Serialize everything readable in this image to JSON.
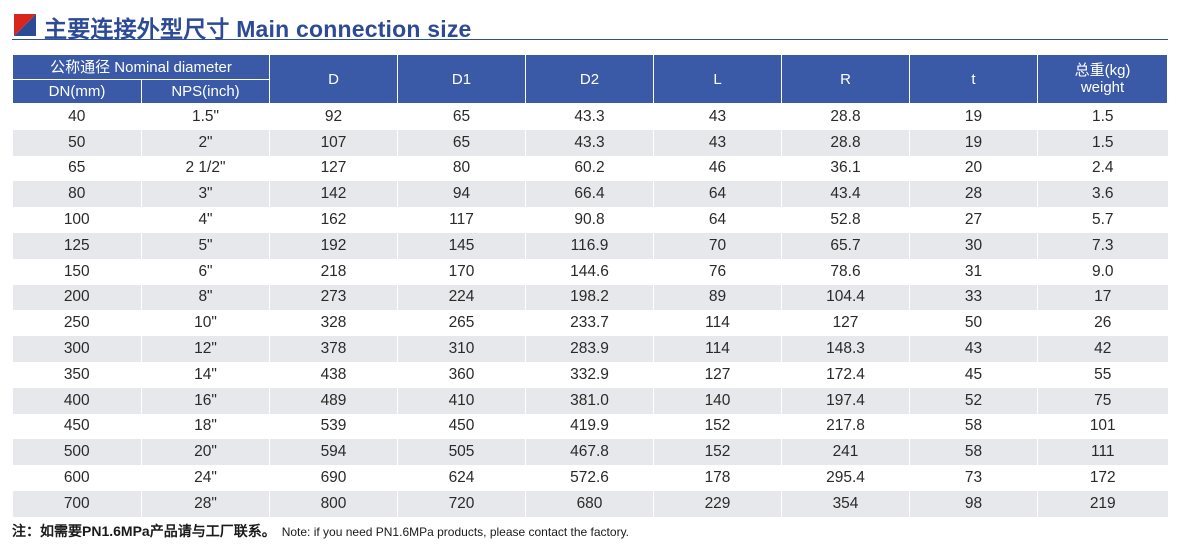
{
  "title": "主要连接外型尺寸 Main connection size",
  "columns": {
    "nominal_group": "公称通径 Nominal diameter",
    "dn": "DN(mm)",
    "nps": "NPS(inch)",
    "d": "D",
    "d1": "D1",
    "d2": "D2",
    "l": "L",
    "r": "R",
    "t": "t",
    "weight_cn": "总重(kg)",
    "weight_en": "weight"
  },
  "rows": [
    [
      "40",
      "1.5\"",
      "92",
      "65",
      "43.3",
      "43",
      "28.8",
      "19",
      "1.5"
    ],
    [
      "50",
      "2\"",
      "107",
      "65",
      "43.3",
      "43",
      "28.8",
      "19",
      "1.5"
    ],
    [
      "65",
      "2 1/2\"",
      "127",
      "80",
      "60.2",
      "46",
      "36.1",
      "20",
      "2.4"
    ],
    [
      "80",
      "3\"",
      "142",
      "94",
      "66.4",
      "64",
      "43.4",
      "28",
      "3.6"
    ],
    [
      "100",
      "4\"",
      "162",
      "117",
      "90.8",
      "64",
      "52.8",
      "27",
      "5.7"
    ],
    [
      "125",
      "5\"",
      "192",
      "145",
      "116.9",
      "70",
      "65.7",
      "30",
      "7.3"
    ],
    [
      "150",
      "6\"",
      "218",
      "170",
      "144.6",
      "76",
      "78.6",
      "31",
      "9.0"
    ],
    [
      "200",
      "8\"",
      "273",
      "224",
      "198.2",
      "89",
      "104.4",
      "33",
      "17"
    ],
    [
      "250",
      "10\"",
      "328",
      "265",
      "233.7",
      "114",
      "127",
      "50",
      "26"
    ],
    [
      "300",
      "12\"",
      "378",
      "310",
      "283.9",
      "114",
      "148.3",
      "43",
      "42"
    ],
    [
      "350",
      "14\"",
      "438",
      "360",
      "332.9",
      "127",
      "172.4",
      "45",
      "55"
    ],
    [
      "400",
      "16\"",
      "489",
      "410",
      "381.0",
      "140",
      "197.4",
      "52",
      "75"
    ],
    [
      "450",
      "18\"",
      "539",
      "450",
      "419.9",
      "152",
      "217.8",
      "58",
      "101"
    ],
    [
      "500",
      "20\"",
      "594",
      "505",
      "467.8",
      "152",
      "241",
      "58",
      "111"
    ],
    [
      "600",
      "24\"",
      "690",
      "624",
      "572.6",
      "178",
      "295.4",
      "73",
      "172"
    ],
    [
      "700",
      "28\"",
      "800",
      "720",
      "680",
      "229",
      "354",
      "98",
      "219"
    ]
  ],
  "note": {
    "cn": "注：如需要PN1.6MPa产品请与工厂联系。",
    "en": "Note: if you need PN1.6MPa products, please contact the factory."
  },
  "colors": {
    "header_bg": "#3a5aa8",
    "title_text": "#2c4a96",
    "stripe": "#e7e8eb",
    "icon_red": "#d9261c",
    "icon_blue": "#2c4a96"
  },
  "icons": {
    "title": "red-blue-triangle-icon"
  }
}
